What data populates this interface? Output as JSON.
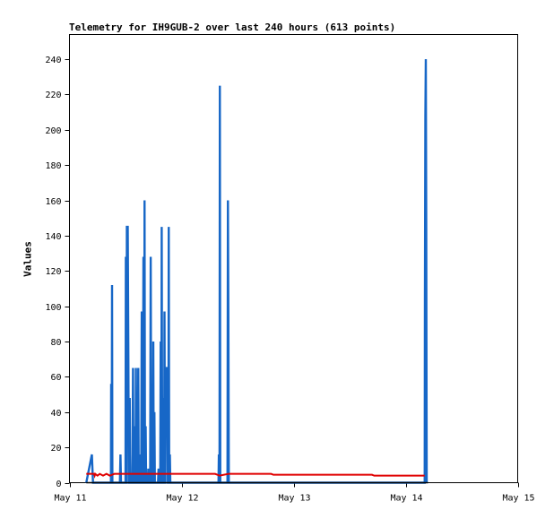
{
  "chart_data": {
    "type": "line",
    "title": "Telemetry for IH9GUB-2 over last 240 hours (613 points)",
    "ylabel": "Values",
    "xlabel": "",
    "ylim": [
      0,
      254
    ],
    "xlim_days": [
      11,
      15
    ],
    "x_ticks": [
      {
        "day": 11,
        "label": "May 11"
      },
      {
        "day": 12,
        "label": "May 12"
      },
      {
        "day": 13,
        "label": "May 13"
      },
      {
        "day": 14,
        "label": "May 14"
      },
      {
        "day": 15,
        "label": "May 15"
      }
    ],
    "y_ticks": [
      0,
      20,
      40,
      60,
      80,
      100,
      120,
      140,
      160,
      180,
      200,
      220,
      240
    ],
    "grid": false,
    "colors": {
      "blue": "#1767c7",
      "red": "#e00000",
      "black": "#000000"
    },
    "series": [
      {
        "color": "blue",
        "points": [
          [
            11.15,
            0
          ],
          [
            11.2,
            16
          ],
          [
            11.21,
            0
          ],
          [
            11.37,
            0
          ],
          [
            11.372,
            56
          ],
          [
            11.374,
            0
          ],
          [
            11.377,
            0
          ],
          [
            11.38,
            112
          ],
          [
            11.383,
            0
          ],
          [
            11.45,
            0
          ],
          [
            11.455,
            16
          ],
          [
            11.46,
            0
          ],
          [
            11.5,
            0
          ],
          [
            11.503,
            128
          ],
          [
            11.506,
            0
          ],
          [
            11.509,
            0
          ],
          [
            11.512,
            145
          ],
          [
            11.52,
            145
          ],
          [
            11.526,
            65
          ],
          [
            11.53,
            0
          ],
          [
            11.534,
            0
          ],
          [
            11.538,
            48
          ],
          [
            11.542,
            0
          ],
          [
            11.56,
            0
          ],
          [
            11.563,
            16
          ],
          [
            11.567,
            65
          ],
          [
            11.571,
            0
          ],
          [
            11.58,
            0
          ],
          [
            11.583,
            32
          ],
          [
            11.587,
            0
          ],
          [
            11.59,
            0
          ],
          [
            11.593,
            65
          ],
          [
            11.597,
            0
          ],
          [
            11.6,
            0
          ],
          [
            11.603,
            32
          ],
          [
            11.607,
            0
          ],
          [
            11.61,
            0
          ],
          [
            11.614,
            65
          ],
          [
            11.618,
            0
          ],
          [
            11.63,
            0
          ],
          [
            11.634,
            16
          ],
          [
            11.638,
            0
          ],
          [
            11.64,
            0
          ],
          [
            11.645,
            97
          ],
          [
            11.65,
            0
          ],
          [
            11.655,
            0
          ],
          [
            11.66,
            128
          ],
          [
            11.663,
            65
          ],
          [
            11.665,
            0
          ],
          [
            11.667,
            0
          ],
          [
            11.67,
            160
          ],
          [
            11.674,
            0
          ],
          [
            11.677,
            0
          ],
          [
            11.68,
            32
          ],
          [
            11.684,
            0
          ],
          [
            11.7,
            0
          ],
          [
            11.704,
            8
          ],
          [
            11.708,
            0
          ],
          [
            11.72,
            0
          ],
          [
            11.725,
            128
          ],
          [
            11.73,
            0
          ],
          [
            11.733,
            0
          ],
          [
            11.736,
            48
          ],
          [
            11.74,
            0
          ],
          [
            11.745,
            0
          ],
          [
            11.748,
            80
          ],
          [
            11.752,
            0
          ],
          [
            11.755,
            0
          ],
          [
            11.758,
            40
          ],
          [
            11.762,
            0
          ],
          [
            11.79,
            0
          ],
          [
            11.795,
            8
          ],
          [
            11.8,
            0
          ],
          [
            11.81,
            0
          ],
          [
            11.814,
            80
          ],
          [
            11.818,
            0
          ],
          [
            11.82,
            0
          ],
          [
            11.823,
            145
          ],
          [
            11.828,
            0
          ],
          [
            11.832,
            0
          ],
          [
            11.836,
            48
          ],
          [
            11.84,
            0
          ],
          [
            11.845,
            0
          ],
          [
            11.848,
            97
          ],
          [
            11.852,
            0
          ],
          [
            11.856,
            0
          ],
          [
            11.86,
            65
          ],
          [
            11.875,
            65
          ],
          [
            11.878,
            0
          ],
          [
            11.883,
            0
          ],
          [
            11.886,
            145
          ],
          [
            11.89,
            0
          ],
          [
            11.893,
            0
          ],
          [
            11.896,
            16
          ],
          [
            11.9,
            0
          ],
          [
            12.33,
            0
          ],
          [
            12.333,
            16
          ],
          [
            12.336,
            0
          ],
          [
            12.339,
            0
          ],
          [
            12.342,
            225
          ],
          [
            12.346,
            0
          ],
          [
            12.41,
            0
          ],
          [
            12.414,
            160
          ],
          [
            12.418,
            97
          ],
          [
            12.422,
            0
          ],
          [
            14.17,
            0
          ],
          [
            14.172,
            104
          ],
          [
            14.176,
            208
          ],
          [
            14.18,
            240
          ],
          [
            14.184,
            145
          ],
          [
            14.188,
            0
          ]
        ]
      },
      {
        "color": "red",
        "points": [
          [
            11.15,
            5
          ],
          [
            11.22,
            5
          ],
          [
            11.225,
            4
          ],
          [
            11.23,
            5
          ],
          [
            11.25,
            4
          ],
          [
            11.27,
            5
          ],
          [
            11.3,
            4
          ],
          [
            11.33,
            5
          ],
          [
            11.36,
            4
          ],
          [
            11.4,
            5
          ],
          [
            12.3,
            5
          ],
          [
            12.34,
            4
          ],
          [
            12.42,
            5
          ],
          [
            12.8,
            5
          ],
          [
            12.82,
            4.5
          ],
          [
            13.7,
            4.5
          ],
          [
            13.72,
            4
          ],
          [
            14.17,
            4
          ]
        ]
      },
      {
        "color": "black",
        "points": [
          [
            11.15,
            0
          ],
          [
            14.2,
            0
          ]
        ]
      }
    ]
  }
}
